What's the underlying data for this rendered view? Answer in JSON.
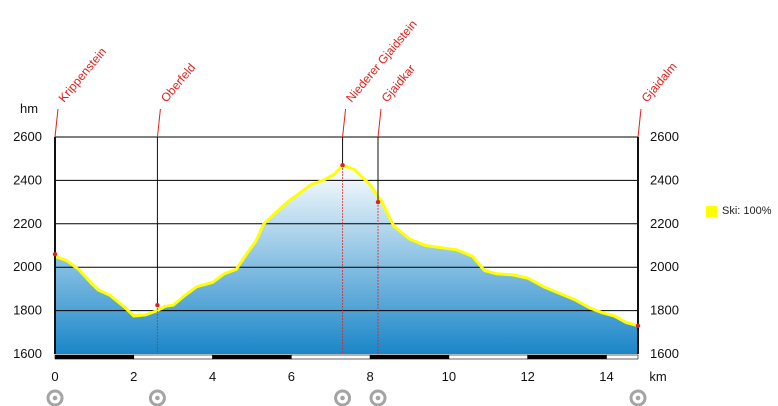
{
  "chart_data": {
    "type": "area",
    "title": "",
    "y_unit": "hm",
    "x_unit": "km",
    "xlim": [
      0,
      14.8
    ],
    "ylim": [
      1600,
      2600
    ],
    "x_ticks": [
      "0",
      "2",
      "4",
      "6",
      "8",
      "10",
      "12",
      "14"
    ],
    "y_ticks": [
      "1600",
      "1800",
      "2000",
      "2200",
      "2400",
      "2600"
    ],
    "grid": true,
    "legend_position": "right",
    "colors": {
      "line": "#ffff00",
      "area_top": "#ffffff",
      "area_bottom": "#1a86c8",
      "waypoint": "#e0201b",
      "grid": "#000000"
    },
    "series": [
      {
        "name": "Ski: 100%",
        "color": "#ffff00",
        "x": [
          0,
          0.3,
          0.6,
          0.9,
          1.1,
          1.4,
          1.6,
          1.8,
          2.0,
          2.3,
          2.6,
          2.8,
          3.0,
          3.3,
          3.6,
          4.0,
          4.3,
          4.6,
          4.9,
          5.1,
          5.3,
          5.6,
          5.9,
          6.2,
          6.5,
          6.8,
          7.1,
          7.3,
          7.6,
          8.0,
          8.3,
          8.6,
          9.0,
          9.4,
          9.8,
          10.2,
          10.6,
          10.9,
          11.2,
          11.6,
          12.0,
          12.4,
          12.8,
          13.2,
          13.6,
          13.9,
          14.2,
          14.5,
          14.8
        ],
        "y": [
          2050,
          2030,
          1990,
          1930,
          1895,
          1870,
          1840,
          1810,
          1775,
          1780,
          1800,
          1820,
          1825,
          1870,
          1910,
          1930,
          1970,
          1990,
          2070,
          2120,
          2200,
          2250,
          2300,
          2340,
          2380,
          2400,
          2430,
          2470,
          2450,
          2380,
          2300,
          2190,
          2130,
          2100,
          2090,
          2080,
          2050,
          1985,
          1970,
          1965,
          1950,
          1910,
          1880,
          1850,
          1810,
          1790,
          1775,
          1745,
          1730
        ]
      }
    ],
    "waypoints": [
      {
        "label": "Krippenstein",
        "x": 0.0,
        "y": 2060
      },
      {
        "label": "Oberfeld",
        "x": 2.6,
        "y": 1825
      },
      {
        "label": "Niederer Gjaidstein",
        "x": 7.3,
        "y": 2470
      },
      {
        "label": "Gjaidkar",
        "x": 8.2,
        "y": 2300
      },
      {
        "label": "Gjaidalm",
        "x": 14.8,
        "y": 1730
      }
    ],
    "bottom_bar": {
      "segment_km": 2,
      "colors": [
        "#000000",
        "#ffffff"
      ]
    }
  }
}
